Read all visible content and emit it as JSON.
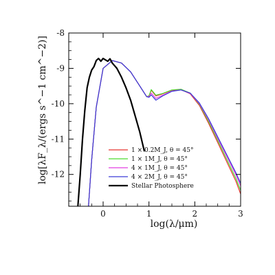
{
  "chart_data": {
    "type": "line",
    "xlabel": "log(λ/μm)",
    "ylabel": "log[λF_λ/(ergs s^−1 cm^−2)]",
    "xlim": [
      -0.75,
      3.0
    ],
    "ylim": [
      -12.9,
      -8.0
    ],
    "x_ticks": [
      "0",
      "1",
      "2",
      "3"
    ],
    "y_ticks": [
      "-8",
      "-9",
      "-10",
      "-11",
      "-12"
    ],
    "grid": false,
    "legend_position": "lower-right",
    "series": [
      {
        "name": "1 × 0.2M_J, θ = 45°",
        "color": "#e8352d",
        "x": [
          -0.32,
          -0.25,
          -0.15,
          0.0,
          0.2,
          0.4,
          0.6,
          0.8,
          0.95,
          1.0,
          1.05,
          1.15,
          1.3,
          1.5,
          1.7,
          1.9,
          2.1,
          2.3,
          2.5,
          2.7,
          2.9,
          3.0
        ],
        "y": [
          -12.9,
          -11.6,
          -10.1,
          -9.0,
          -8.78,
          -8.85,
          -9.1,
          -9.5,
          -9.8,
          -9.78,
          -9.62,
          -9.78,
          -9.72,
          -9.62,
          -9.6,
          -9.72,
          -10.05,
          -10.55,
          -11.1,
          -11.65,
          -12.2,
          -12.55
        ]
      },
      {
        "name": "1 × 1M_J, θ = 45°",
        "color": "#4cd92e",
        "x": [
          -0.32,
          -0.25,
          -0.15,
          0.0,
          0.2,
          0.4,
          0.6,
          0.8,
          0.95,
          1.0,
          1.05,
          1.15,
          1.3,
          1.5,
          1.7,
          1.9,
          2.1,
          2.3,
          2.5,
          2.7,
          2.9,
          3.0
        ],
        "y": [
          -12.9,
          -11.6,
          -10.1,
          -9.0,
          -8.78,
          -8.85,
          -9.1,
          -9.5,
          -9.8,
          -9.78,
          -9.6,
          -9.76,
          -9.71,
          -9.61,
          -9.59,
          -9.7,
          -10.02,
          -10.5,
          -11.04,
          -11.58,
          -12.12,
          -12.45
        ]
      },
      {
        "name": "4 × 1M_J, θ = 45°",
        "color": "#e23ee0",
        "x": [
          -0.32,
          -0.25,
          -0.15,
          0.0,
          0.2,
          0.4,
          0.6,
          0.8,
          0.95,
          1.0,
          1.05,
          1.15,
          1.3,
          1.5,
          1.7,
          1.9,
          2.1,
          2.3,
          2.5,
          2.7,
          2.9,
          3.0
        ],
        "y": [
          -12.9,
          -11.6,
          -10.1,
          -9.0,
          -8.78,
          -8.85,
          -9.1,
          -9.5,
          -9.8,
          -9.8,
          -9.7,
          -9.85,
          -9.76,
          -9.64,
          -9.61,
          -9.71,
          -10.0,
          -10.45,
          -10.98,
          -11.5,
          -12.02,
          -12.32
        ]
      },
      {
        "name": "4 × 2M_J, θ = 45°",
        "color": "#3a3ad8",
        "x": [
          -0.32,
          -0.25,
          -0.15,
          0.0,
          0.2,
          0.4,
          0.6,
          0.8,
          0.95,
          1.0,
          1.05,
          1.15,
          1.3,
          1.5,
          1.7,
          1.9,
          2.1,
          2.3,
          2.5,
          2.7,
          2.9,
          3.0
        ],
        "y": [
          -12.9,
          -11.6,
          -10.1,
          -9.0,
          -8.78,
          -8.85,
          -9.1,
          -9.5,
          -9.8,
          -9.82,
          -9.75,
          -9.9,
          -9.78,
          -9.65,
          -9.61,
          -9.7,
          -9.98,
          -10.42,
          -10.94,
          -11.45,
          -11.96,
          -12.25
        ]
      },
      {
        "name": "Stellar Photosphere",
        "color": "#000000",
        "x": [
          -0.55,
          -0.5,
          -0.45,
          -0.4,
          -0.35,
          -0.3,
          -0.25,
          -0.2,
          -0.15,
          -0.1,
          -0.05,
          0.0,
          0.05,
          0.1,
          0.15,
          0.2,
          0.3,
          0.4,
          0.5,
          0.6,
          0.7,
          0.8,
          0.9
        ],
        "y": [
          -12.9,
          -12.0,
          -11.0,
          -10.2,
          -9.55,
          -9.25,
          -9.05,
          -8.95,
          -8.78,
          -8.72,
          -8.8,
          -8.72,
          -8.76,
          -8.8,
          -8.73,
          -8.85,
          -9.0,
          -9.25,
          -9.55,
          -9.9,
          -10.35,
          -10.8,
          -11.35
        ]
      }
    ]
  }
}
